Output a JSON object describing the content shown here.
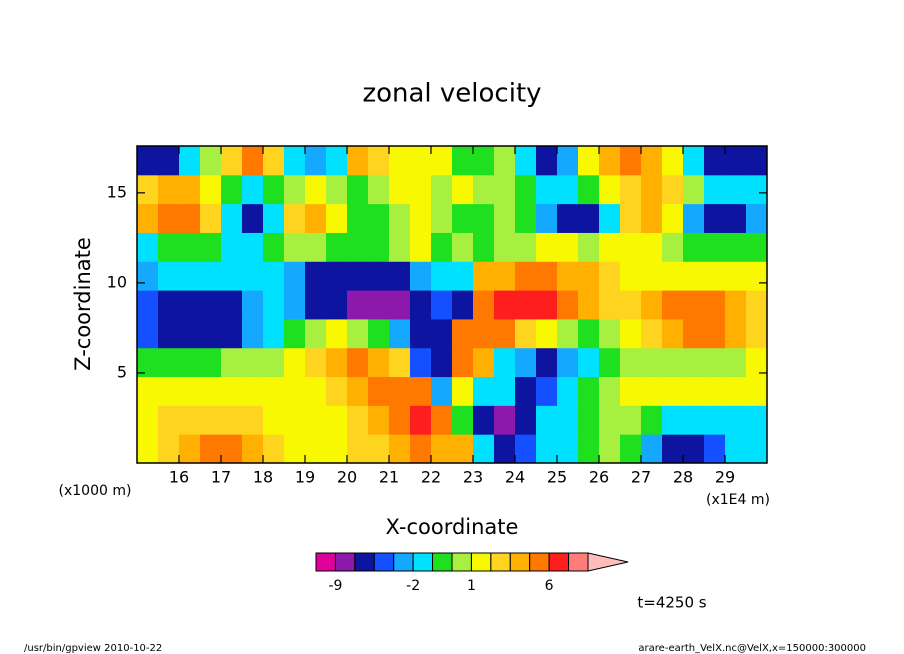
{
  "chart_data": {
    "type": "contour",
    "title": "zonal velocity",
    "xlabel": "X-coordinate",
    "ylabel": "Z-coordinate",
    "x_unit_label": "(x1E4 m)",
    "y_unit_label": "(x1000 m)",
    "xlim": [
      15,
      30
    ],
    "ylim": [
      0,
      17.6
    ],
    "xticks": [
      16,
      17,
      18,
      19,
      20,
      21,
      22,
      23,
      24,
      25,
      26,
      27,
      28,
      29
    ],
    "yticks": [
      5,
      10,
      15
    ],
    "x": [
      15.25,
      15.75,
      16.25,
      16.75,
      17.25,
      17.75,
      18.25,
      18.75,
      19.25,
      19.75,
      20.25,
      20.75,
      21.25,
      21.75,
      22.25,
      22.75,
      23.25,
      23.75,
      24.25,
      24.75,
      25.25,
      25.75,
      26.25,
      26.75,
      27.25,
      27.75,
      28.25,
      28.75,
      29.25,
      29.75
    ],
    "y": [
      0.8,
      2.4,
      4.0,
      5.6,
      7.2,
      8.8,
      10.4,
      12.0,
      13.6,
      15.2,
      16.8
    ],
    "z": [
      [
        1.5,
        2.5,
        3.5,
        5,
        5,
        3.5,
        2.5,
        1.5,
        1.5,
        1.5,
        2,
        2.5,
        3.5,
        4.5,
        3,
        3,
        -2,
        -4,
        -3,
        -1.5,
        -1.5,
        -0.5,
        0.5,
        -1,
        -2.2,
        -4,
        -4.5,
        -3,
        -1.5,
        -1.5
      ],
      [
        1.5,
        2.2,
        2.5,
        2.5,
        2.5,
        2.2,
        1.5,
        1.2,
        1.2,
        1.5,
        2.2,
        3.5,
        5,
        7,
        4,
        -1,
        -4,
        -7,
        -4,
        -1.5,
        -1.5,
        -0.5,
        0.5,
        0.5,
        -0.5,
        -1.5,
        -1.5,
        -1.5,
        -1.5,
        -1.5
      ],
      [
        1.5,
        1.5,
        1.5,
        1.2,
        1.2,
        1.5,
        1.5,
        1.5,
        1.5,
        2.2,
        3.5,
        4.5,
        5,
        4,
        -2.5,
        1,
        -1.5,
        -2,
        -3.5,
        -3,
        -1.5,
        -0.5,
        0.5,
        1.5,
        1.5,
        1.5,
        1.5,
        1.5,
        1.5,
        1.5
      ],
      [
        -0.5,
        -0.5,
        -0.5,
        -0.5,
        0.5,
        0.5,
        0.5,
        1.5,
        2.2,
        3.5,
        4.5,
        3.5,
        2.2,
        -3,
        -6,
        4,
        3,
        -1.5,
        -2.2,
        -3.5,
        -2.5,
        -1.5,
        -0.5,
        0.5,
        0.5,
        0.5,
        0.5,
        0.5,
        0.5,
        1.5
      ],
      [
        -3,
        -3.5,
        -4,
        -4,
        -3.5,
        -2.5,
        -1.5,
        -0.5,
        0.5,
        1.5,
        0.5,
        -1,
        -2.5,
        -4.5,
        -4.5,
        4.5,
        5,
        4.5,
        2.5,
        1.5,
        0.5,
        -0.5,
        0.5,
        1.5,
        2.5,
        3.5,
        4.5,
        4.5,
        3.5,
        2.5
      ],
      [
        -3,
        -3.5,
        -4.5,
        -4.5,
        -3.5,
        -2.2,
        -1.5,
        -2.2,
        -3.5,
        -4.5,
        -6.5,
        -7,
        -6.5,
        -5,
        -3,
        -3.5,
        5,
        6.5,
        7,
        6.5,
        4.5,
        3,
        2.2,
        2.5,
        3.5,
        4.5,
        5,
        4.5,
        3.5,
        2.5
      ],
      [
        -2.2,
        -2,
        -1.5,
        -1.5,
        -1.5,
        -1.5,
        -1.5,
        -2.5,
        -3.5,
        -4,
        -4.5,
        -4.5,
        -3.5,
        -2.5,
        -1.5,
        -1.5,
        3,
        3.5,
        4,
        4,
        3.5,
        3,
        2.2,
        1.5,
        1.5,
        1.5,
        1.5,
        1.5,
        1.5,
        1.5
      ],
      [
        -1.5,
        -0.5,
        -0.5,
        -0.5,
        -1.5,
        -1.5,
        -0.5,
        0.5,
        0.5,
        -0.5,
        -0.5,
        -0.5,
        0.5,
        1.5,
        -0.5,
        0.5,
        -0.5,
        0.5,
        0.5,
        1.5,
        1.5,
        0.5,
        1.5,
        1.5,
        1.5,
        0.5,
        -0.5,
        -0.5,
        -0.5,
        -0.5
      ],
      [
        3.5,
        5,
        4.5,
        2.2,
        -1.5,
        -4,
        -1.5,
        2.2,
        3.5,
        1.5,
        -0.5,
        -0.5,
        0.5,
        1.5,
        0.5,
        -0.5,
        -0.5,
        0.5,
        -0.5,
        -2.2,
        -3.5,
        -4,
        -1.5,
        2.5,
        3.5,
        1.5,
        -2.2,
        -4.5,
        -4.5,
        -2.2
      ],
      [
        2.5,
        3.5,
        3,
        1.5,
        -0.5,
        -1.5,
        -0.5,
        0.5,
        1.5,
        0.5,
        -0.5,
        0.5,
        1.5,
        1.5,
        0.5,
        1.5,
        0.5,
        0.5,
        -0.5,
        -1.5,
        -1.5,
        -0.5,
        1.5,
        2.5,
        3.5,
        2.5,
        0.5,
        -1.5,
        -1.5,
        -1.5
      ],
      [
        -4,
        -3.5,
        -1.5,
        0.5,
        2.5,
        4.5,
        2.2,
        -1.5,
        -2.2,
        -1.5,
        3.5,
        2.5,
        1.5,
        1.5,
        1.5,
        -0.5,
        -0.5,
        0.5,
        -1.5,
        -3.5,
        -2.2,
        1.5,
        3.5,
        4.5,
        3.5,
        1.5,
        -1.5,
        -3.5,
        -4,
        -3.5
      ]
    ],
    "colorbar": {
      "levels": [
        -15,
        -9,
        -6,
        -3,
        -2.5,
        -2,
        -1,
        0,
        1,
        2,
        3,
        4,
        6,
        9,
        15
      ],
      "colors": [
        "#e0009c",
        "#8c18ac",
        "#0c14a0",
        "#1450ff",
        "#14a8ff",
        "#00e0ff",
        "#1ee01e",
        "#a8f040",
        "#f8f800",
        "#ffd41e",
        "#ffb000",
        "#ff7800",
        "#ff1e1e",
        "#ff7c78",
        "#ffbcbc"
      ],
      "ticks": [
        -9,
        -2,
        1,
        6
      ]
    },
    "annotation": "t=4250 s",
    "footer_left": "/usr/bin/gpview  2010-10-22",
    "footer_right": "arare-earth_VelX.nc@VelX,x=150000:300000"
  }
}
